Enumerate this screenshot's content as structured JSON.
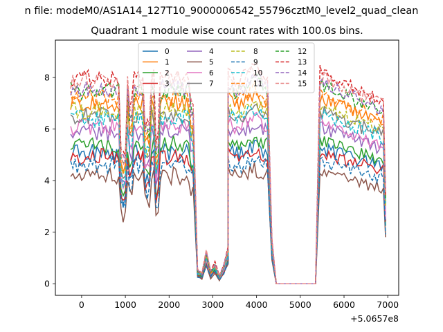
{
  "chart_data": {
    "type": "line",
    "suptitle": "n file: modeM0/AS1A14_127T10_9000006542_55796cztM0_level2_quad_clean",
    "title": "Quadrant 1 module wise count rates with 100.0s bins.",
    "xlabel": "",
    "ylabel": "",
    "x_offset_label": "+5.0657e8",
    "xlim": [
      -600,
      7250
    ],
    "ylim": [
      -0.45,
      9.45
    ],
    "xticks": [
      0,
      1000,
      2000,
      3000,
      4000,
      5000,
      6000,
      7000
    ],
    "yticks": [
      0,
      2,
      4,
      6,
      8
    ],
    "legend_position": "upper-center",
    "segments": {
      "seg1_x_start": -250,
      "seg1_x_end": 2550,
      "gap1_x": [
        2650,
        2750,
        2850,
        2950,
        3050,
        3150,
        3250,
        3350
      ],
      "gap1_factors": [
        0.07,
        0.05,
        0.16,
        0.06,
        0.1,
        0.04,
        0.09,
        0.18
      ],
      "seg2_x_start": 3350,
      "seg2_x_end": 4250,
      "gap2_x": [
        4350,
        4450,
        5350
      ],
      "seg3_x_start": 5450,
      "seg3_x_end": 6950
    },
    "series": [
      {
        "name": "0",
        "style": "solid",
        "color": "#1f77b4",
        "level": 5.1
      },
      {
        "name": "1",
        "style": "solid",
        "color": "#ff7f0e",
        "level": 7.0
      },
      {
        "name": "2",
        "style": "solid",
        "color": "#2ca02c",
        "level": 5.4
      },
      {
        "name": "3",
        "style": "solid",
        "color": "#d62728",
        "level": 4.9
      },
      {
        "name": "4",
        "style": "solid",
        "color": "#9467bd",
        "level": 5.9
      },
      {
        "name": "5",
        "style": "solid",
        "color": "#8c564b",
        "level": 4.2
      },
      {
        "name": "6",
        "style": "solid",
        "color": "#e377c2",
        "level": 6.1
      },
      {
        "name": "7",
        "style": "solid",
        "color": "#7f7f7f",
        "level": 6.5
      },
      {
        "name": "8",
        "style": "dashed",
        "color": "#bcbd22",
        "level": 6.7
      },
      {
        "name": "9",
        "style": "dashed",
        "color": "#1f77b4",
        "level": 4.6
      },
      {
        "name": "10",
        "style": "dashed",
        "color": "#17becf",
        "level": 6.4
      },
      {
        "name": "11",
        "style": "dashed",
        "color": "#ff7f0e",
        "level": 7.2
      },
      {
        "name": "12",
        "style": "dashed",
        "color": "#2ca02c",
        "level": 7.5
      },
      {
        "name": "13",
        "style": "dashed",
        "color": "#d62728",
        "level": 8.0
      },
      {
        "name": "14",
        "style": "dashed",
        "color": "#9467bd",
        "level": 7.6
      },
      {
        "name": "15",
        "style": "dashed",
        "color": "#e78686",
        "level": 7.8
      }
    ]
  }
}
